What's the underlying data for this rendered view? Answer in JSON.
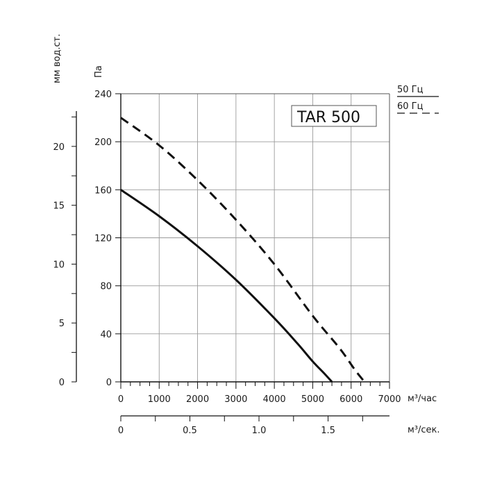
{
  "chart_data": {
    "type": "line",
    "model_label": "TAR 500",
    "x_unit": "м³/час",
    "x2_unit": "м³/сек.",
    "y_unit": "Па",
    "y2_unit": "мм вод.ст.",
    "x_ticks": [
      "0",
      "1000",
      "2000",
      "3000",
      "4000",
      "5000",
      "6000",
      "7000"
    ],
    "x2_ticks": [
      "0",
      "0.5",
      "1.0",
      "1.5"
    ],
    "y_ticks": [
      "0",
      "40",
      "80",
      "120",
      "160",
      "200",
      "240"
    ],
    "y2_ticks": [
      "0",
      "5",
      "10",
      "15",
      "20"
    ],
    "xlim": [
      0,
      7000
    ],
    "ylim": [
      0,
      240
    ],
    "grid": true,
    "legend_position": "top-right",
    "series": [
      {
        "name": "50 Гц",
        "style": "solid",
        "color": "#111111",
        "x": [
          0,
          1000,
          2000,
          3000,
          4000,
          4600,
          5000,
          5300,
          5500
        ],
        "y": [
          160,
          138,
          113,
          85,
          53,
          32,
          17,
          7,
          0
        ]
      },
      {
        "name": "60 Гц",
        "style": "dashed",
        "color": "#111111",
        "x": [
          0,
          1000,
          2000,
          3000,
          4000,
          5000,
          5700,
          6100,
          6350
        ],
        "y": [
          220,
          197,
          168,
          135,
          98,
          55,
          28,
          10,
          0
        ]
      }
    ]
  }
}
